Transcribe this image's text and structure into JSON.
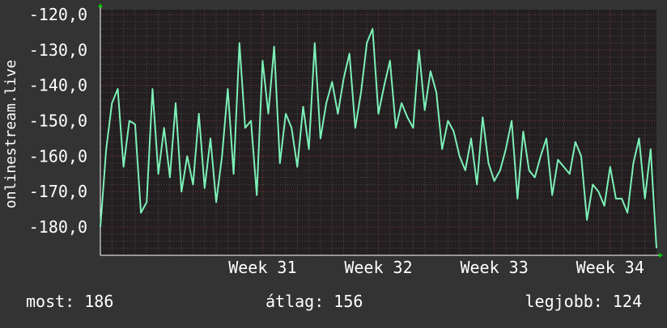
{
  "colors": {
    "background": "#333333",
    "plot_background": "#231f20",
    "grid_minor": "#4a4a4a",
    "grid_major": "#7a3a3a",
    "line": "#7df0b8",
    "axis_arrow": "#00cc00",
    "text": "#ffffff"
  },
  "footer": {
    "now_label": "most:",
    "now_value": "186",
    "avg_label": "átlag:",
    "avg_value": "156",
    "best_label": "legjobb:",
    "best_value": "124"
  },
  "chart_data": {
    "type": "line",
    "title": "",
    "xlabel": "",
    "ylabel": "onlinestream.live",
    "ylim": [
      -188,
      -118.6
    ],
    "y_ticks": [
      -120,
      -130,
      -140,
      -150,
      -160,
      -170,
      -180
    ],
    "y_tick_labels": [
      "-120,0",
      "-130,0",
      "-140,0",
      "-150,0",
      "-160,0",
      "-170,0",
      "-180,0"
    ],
    "xlim": [
      29.6,
      34.4
    ],
    "x_ticks": [
      31,
      32,
      33,
      34
    ],
    "x_tick_labels": [
      "Week 31",
      "Week 32",
      "Week 33",
      "Week 34"
    ],
    "grid": true,
    "series": [
      {
        "x": [
          29.6,
          29.65,
          29.7,
          29.75,
          29.8,
          29.85,
          29.9,
          29.95,
          30.0,
          30.05,
          30.1,
          30.15,
          30.2,
          30.25,
          30.3,
          30.35,
          30.4,
          30.45,
          30.5,
          30.55,
          30.6,
          30.65,
          30.7,
          30.75,
          30.8,
          30.85,
          30.9,
          30.95,
          31.0,
          31.05,
          31.1,
          31.15,
          31.2,
          31.25,
          31.3,
          31.35,
          31.4,
          31.45,
          31.5,
          31.55,
          31.6,
          31.65,
          31.7,
          31.75,
          31.8,
          31.85,
          31.9,
          31.95,
          32.0,
          32.05,
          32.1,
          32.15,
          32.2,
          32.25,
          32.3,
          32.35,
          32.4,
          32.45,
          32.5,
          32.55,
          32.6,
          32.65,
          32.7,
          32.75,
          32.8,
          32.85,
          32.9,
          32.95,
          33.0,
          33.05,
          33.1,
          33.15,
          33.2,
          33.25,
          33.3,
          33.35,
          33.4,
          33.45,
          33.5,
          33.55,
          33.6,
          33.65,
          33.7,
          33.75,
          33.8,
          33.85,
          33.9,
          33.95,
          34.0,
          34.05,
          34.1,
          34.15,
          34.2,
          34.25,
          34.3,
          34.35,
          34.4
        ],
        "values": [
          -180,
          -158,
          -145,
          -141,
          -163,
          -150,
          -151,
          -176,
          -173,
          -141,
          -165,
          -152,
          -166,
          -145,
          -170,
          -160,
          -168,
          -148,
          -169,
          -155,
          -173,
          -160,
          -141,
          -165,
          -128,
          -152,
          -150,
          -171,
          -133,
          -148,
          -129,
          -162,
          -148,
          -152,
          -163,
          -146,
          -158,
          -128,
          -155,
          -145,
          -139,
          -148,
          -138,
          -131,
          -152,
          -142,
          -128,
          -124,
          -148,
          -140,
          -133,
          -152,
          -145,
          -149,
          -152,
          -130,
          -147,
          -136,
          -142,
          -158,
          -150,
          -153,
          -160,
          -164,
          -155,
          -168,
          -149,
          -162,
          -167,
          -164,
          -158,
          -150,
          -172,
          -153,
          -164,
          -166,
          -160,
          -155,
          -171,
          -161,
          -163,
          -165,
          -156,
          -160,
          -178,
          -168,
          -170,
          -174,
          -163,
          -172,
          -172,
          -176,
          -162,
          -155,
          -172,
          -158,
          -186
        ]
      }
    ]
  }
}
